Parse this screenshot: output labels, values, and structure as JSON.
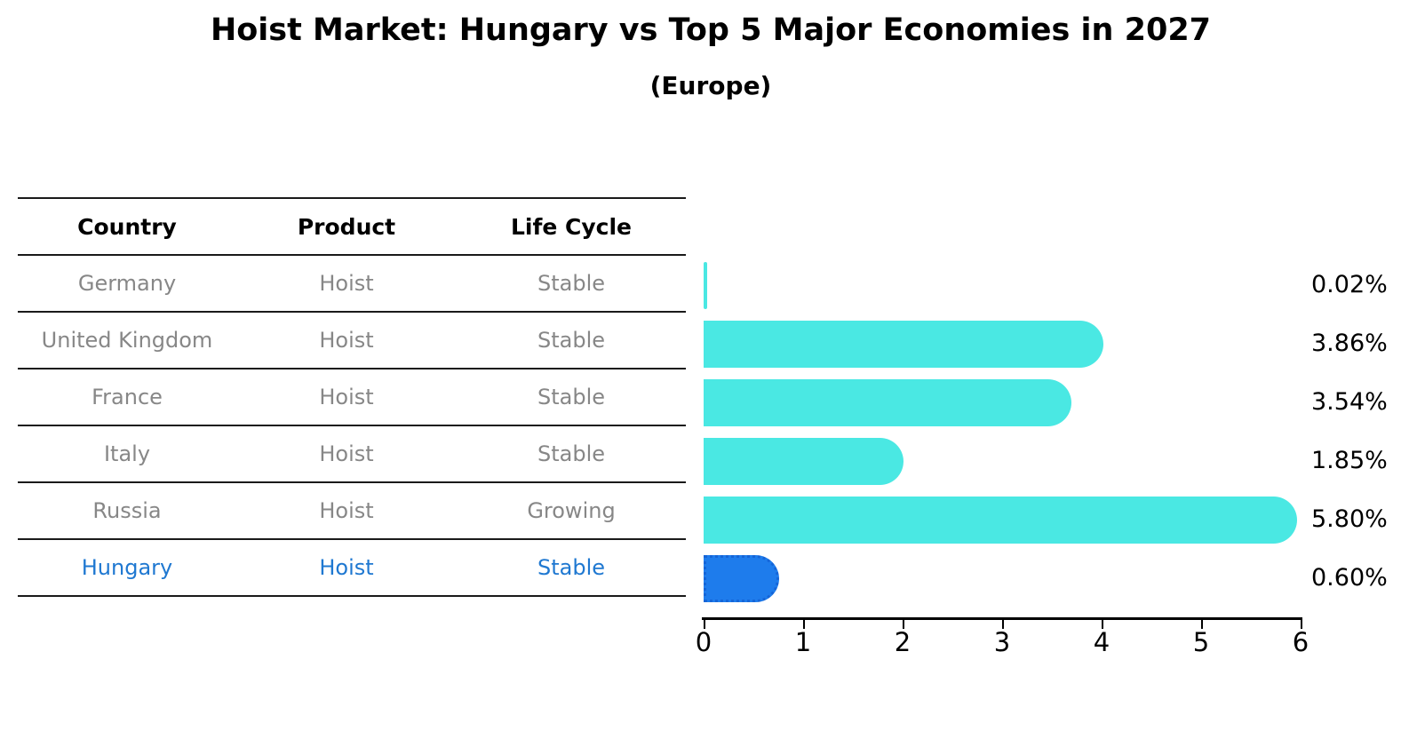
{
  "header": {
    "title": "Hoist Market: Hungary vs Top 5 Major Economies in 2027",
    "subtitle": "(Europe)"
  },
  "table": {
    "headers": [
      "Country",
      "Product",
      "Life Cycle"
    ],
    "rows": [
      {
        "country": "Germany",
        "product": "Hoist",
        "life_cycle": "Stable",
        "highlight": false
      },
      {
        "country": "United Kingdom",
        "product": "Hoist",
        "life_cycle": "Stable",
        "highlight": false
      },
      {
        "country": "France",
        "product": "Hoist",
        "life_cycle": "Stable",
        "highlight": false
      },
      {
        "country": "Italy",
        "product": "Hoist",
        "life_cycle": "Stable",
        "highlight": false
      },
      {
        "country": "Russia",
        "product": "Hoist",
        "life_cycle": "Growing",
        "highlight": false
      },
      {
        "country": "Hungary",
        "product": "Hoist",
        "life_cycle": "Stable",
        "highlight": true
      }
    ]
  },
  "chart_data": {
    "type": "bar",
    "orientation": "horizontal",
    "title": "Hoist Market: Hungary vs Top 5 Major Economies in 2027",
    "subtitle": "(Europe)",
    "categories": [
      "Germany",
      "United Kingdom",
      "France",
      "Italy",
      "Russia",
      "Hungary"
    ],
    "values": [
      0.02,
      3.86,
      3.54,
      1.85,
      5.8,
      0.6
    ],
    "labels": [
      "0.02%",
      "3.86%",
      "3.54%",
      "1.85%",
      "5.80%",
      "0.60%"
    ],
    "xlim": [
      0,
      6
    ],
    "xticks": [
      "0",
      "1",
      "2",
      "3",
      "4",
      "5",
      "6"
    ],
    "grid": false,
    "legend": "none",
    "highlight_index": 5
  },
  "colors": {
    "bar_cyan": "#4ae8e3",
    "bar_blue": "#1e7cec",
    "bar_blue_edge": "#1565d8",
    "blue_text": "#1f78d1",
    "muted_text": "#878787",
    "line_color": "#1a1a1a",
    "text_color": "#000000"
  }
}
